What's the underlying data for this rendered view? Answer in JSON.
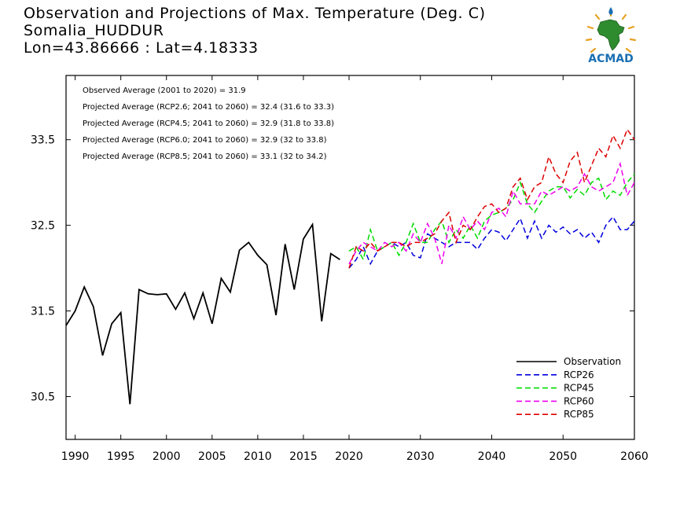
{
  "header": {
    "title": "Observation and Projections of Max. Temperature (Deg. C)",
    "station": "Somalia_HUDDUR",
    "coords": "Lon=43.86666 : Lat=4.18333"
  },
  "logo": {
    "text": "ACMAD",
    "colors": {
      "africa": "#2e8b2e",
      "accent": "#1a6fb3",
      "rays": "#e8a020"
    }
  },
  "stats": [
    "Observed Average (2001 to 2020) = 31.9",
    "Projected Average (RCP2.6; 2041 to 2060) = 32.4 (31.6 to 33.3)",
    "Projected Average (RCP4.5; 2041 to 2060) = 32.9 (31.8 to 33.8)",
    "Projected Average (RCP6.0; 2041 to 2060) = 32.9 (32 to 33.8)",
    "Projected Average (RCP8.5; 2041 to 2060) = 33.1 (32 to 34.2)"
  ],
  "chart_data": {
    "type": "line",
    "title": "Observation and Projections of Max. Temperature (Deg. C)",
    "xlim": [
      1989,
      2060
    ],
    "ylim": [
      30.0,
      34.25
    ],
    "x_ticks": [
      1990,
      1995,
      2000,
      2005,
      2010,
      2015,
      2020,
      2030,
      2040,
      2050,
      2060
    ],
    "y_ticks": [
      30.5,
      31.5,
      32.5,
      33.5
    ],
    "grid": false,
    "legend_position": "bottom-right",
    "series": [
      {
        "name": "Observation",
        "color": "#000000",
        "dash": "solid",
        "x": [
          1989,
          1990,
          1991,
          1992,
          1993,
          1994,
          1995,
          1996,
          1997,
          1998,
          1999,
          2000,
          2001,
          2002,
          2003,
          2004,
          2005,
          2006,
          2007,
          2008,
          2009,
          2010,
          2011,
          2012,
          2013,
          2014,
          2015,
          2016,
          2017,
          2018,
          2019
        ],
        "y": [
          31.33,
          31.5,
          31.78,
          31.55,
          30.98,
          31.35,
          31.48,
          30.41,
          31.75,
          31.7,
          31.69,
          31.7,
          31.52,
          31.71,
          31.41,
          31.71,
          31.35,
          31.88,
          31.72,
          32.21,
          32.3,
          32.15,
          32.04,
          31.45,
          32.28,
          31.75,
          32.34,
          32.51,
          31.38,
          32.17,
          32.1
        ]
      },
      {
        "name": "RCP26",
        "color": "#0000dd",
        "dash": "dashed",
        "x": [
          2020,
          2021,
          2022,
          2023,
          2024,
          2025,
          2026,
          2027,
          2028,
          2029,
          2030,
          2031,
          2032,
          2033,
          2034,
          2035,
          2036,
          2037,
          2038,
          2039,
          2040,
          2041,
          2042,
          2043,
          2044,
          2045,
          2046,
          2047,
          2048,
          2049,
          2050,
          2051,
          2052,
          2053,
          2054,
          2055,
          2056,
          2057,
          2058,
          2059,
          2060
        ],
        "y": [
          32.0,
          32.1,
          32.25,
          32.05,
          32.2,
          32.25,
          32.3,
          32.25,
          32.3,
          32.15,
          32.12,
          32.4,
          32.35,
          32.3,
          32.25,
          32.3,
          32.3,
          32.3,
          32.22,
          32.35,
          32.45,
          32.42,
          32.32,
          32.45,
          32.58,
          32.35,
          32.55,
          32.35,
          32.5,
          32.42,
          32.48,
          32.4,
          32.45,
          32.35,
          32.42,
          32.3,
          32.5,
          32.6,
          32.45,
          32.45,
          32.55
        ]
      },
      {
        "name": "RCP45",
        "color": "#00dd00",
        "dash": "dashed",
        "x": [
          2020,
          2021,
          2022,
          2023,
          2024,
          2025,
          2026,
          2027,
          2028,
          2029,
          2030,
          2031,
          2032,
          2033,
          2034,
          2035,
          2036,
          2037,
          2038,
          2039,
          2040,
          2041,
          2042,
          2043,
          2044,
          2045,
          2046,
          2047,
          2048,
          2049,
          2050,
          2051,
          2052,
          2053,
          2054,
          2055,
          2056,
          2057,
          2058,
          2059,
          2060
        ],
        "y": [
          32.2,
          32.25,
          32.1,
          32.45,
          32.2,
          32.25,
          32.3,
          32.15,
          32.3,
          32.52,
          32.3,
          32.3,
          32.45,
          32.55,
          32.3,
          32.45,
          32.35,
          32.5,
          32.35,
          32.55,
          32.62,
          32.65,
          32.7,
          32.8,
          33.0,
          32.75,
          32.65,
          32.78,
          32.9,
          32.95,
          32.95,
          32.82,
          32.92,
          32.85,
          33.0,
          33.05,
          32.8,
          32.9,
          32.85,
          33.0,
          33.1
        ]
      },
      {
        "name": "RCP60",
        "color": "#ee00ee",
        "dash": "dashed",
        "x": [
          2020,
          2021,
          2022,
          2023,
          2024,
          2025,
          2026,
          2027,
          2028,
          2029,
          2030,
          2031,
          2032,
          2033,
          2034,
          2035,
          2036,
          2037,
          2038,
          2039,
          2040,
          2041,
          2042,
          2043,
          2044,
          2045,
          2046,
          2047,
          2048,
          2049,
          2050,
          2051,
          2052,
          2053,
          2054,
          2055,
          2056,
          2057,
          2058,
          2059,
          2060
        ],
        "y": [
          32.05,
          32.2,
          32.3,
          32.25,
          32.2,
          32.3,
          32.25,
          32.3,
          32.2,
          32.4,
          32.3,
          32.52,
          32.35,
          32.05,
          32.5,
          32.35,
          32.6,
          32.45,
          32.55,
          32.45,
          32.65,
          32.7,
          32.6,
          32.9,
          32.75,
          32.75,
          32.75,
          32.9,
          32.85,
          32.9,
          32.95,
          32.9,
          32.95,
          33.1,
          32.95,
          32.9,
          32.95,
          33.0,
          33.22,
          32.85,
          33.0
        ]
      },
      {
        "name": "RCP85",
        "color": "#dd0000",
        "dash": "dashed",
        "x": [
          2020,
          2021,
          2022,
          2023,
          2024,
          2025,
          2026,
          2027,
          2028,
          2029,
          2030,
          2031,
          2032,
          2033,
          2034,
          2035,
          2036,
          2037,
          2038,
          2039,
          2040,
          2041,
          2042,
          2043,
          2044,
          2045,
          2046,
          2047,
          2048,
          2049,
          2050,
          2051,
          2052,
          2053,
          2054,
          2055,
          2056,
          2057,
          2058,
          2059,
          2060
        ],
        "y": [
          32.0,
          32.25,
          32.2,
          32.3,
          32.2,
          32.25,
          32.3,
          32.3,
          32.25,
          32.3,
          32.3,
          32.35,
          32.4,
          32.55,
          32.65,
          32.3,
          32.5,
          32.45,
          32.6,
          32.72,
          32.75,
          32.65,
          32.7,
          32.95,
          33.05,
          32.8,
          32.95,
          33.0,
          33.3,
          33.1,
          33.0,
          33.25,
          33.35,
          33.0,
          33.2,
          33.4,
          33.3,
          33.55,
          33.4,
          33.62,
          33.5
        ]
      }
    ]
  }
}
